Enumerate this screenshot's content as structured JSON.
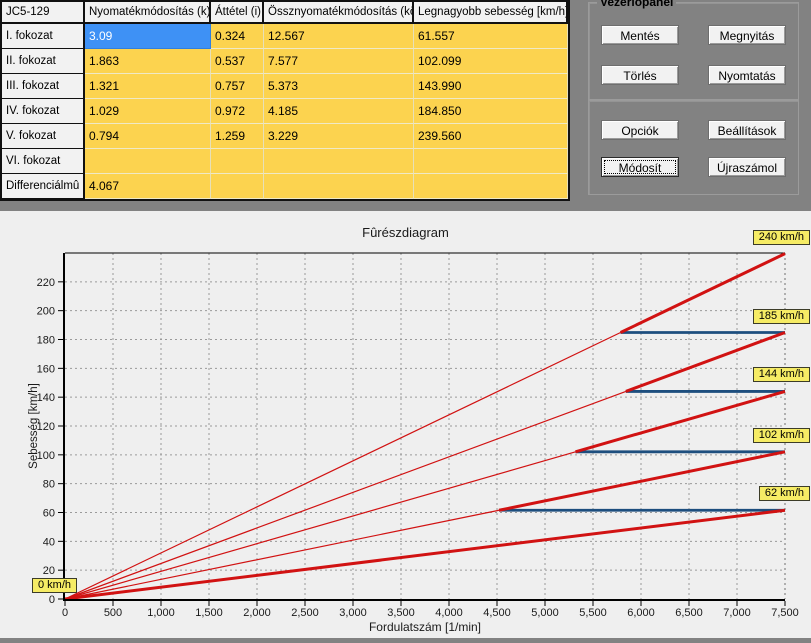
{
  "table": {
    "corner_header": "JC5-129",
    "col_headers": [
      "Nyomatékmódosítás (k)",
      "Áttétel (i)",
      "Össznyomatékmódosítás (kö)",
      "Legnagyobb sebesség [km/h]"
    ],
    "rows": [
      {
        "label": "I. fokozat",
        "values": [
          "3.09",
          "0.324",
          "12.567",
          "61.557"
        ],
        "selected_col": 0
      },
      {
        "label": "II. fokozat",
        "values": [
          "1.863",
          "0.537",
          "7.577",
          "102.099"
        ],
        "selected_col": -1
      },
      {
        "label": "III. fokozat",
        "values": [
          "1.321",
          "0.757",
          "5.373",
          "143.990"
        ],
        "selected_col": -1
      },
      {
        "label": "IV. fokozat",
        "values": [
          "1.029",
          "0.972",
          "4.185",
          "184.850"
        ],
        "selected_col": -1
      },
      {
        "label": "V. fokozat",
        "values": [
          "0.794",
          "1.259",
          "3.229",
          "239.560"
        ],
        "selected_col": -1
      },
      {
        "label": "VI. fokozat",
        "values": [
          "",
          "",
          "",
          ""
        ],
        "selected_col": -1
      },
      {
        "label": "Differenciálmû",
        "values": [
          "4.067",
          "",
          "",
          ""
        ],
        "selected_col": -1
      }
    ]
  },
  "control_panel": {
    "title": "Vezérlõpanel",
    "group1_buttons": [
      "Mentés",
      "Megnyitás",
      "Törlés",
      "Nyomtatás"
    ],
    "group2_buttons": [
      "Opciók",
      "Beállítások",
      "Módosít",
      "Újraszámol"
    ],
    "focused_button": "Módosít"
  },
  "chart_data": {
    "type": "line",
    "title": "Fûrészdiagram",
    "xlabel": "Fordulatszám [1/min]",
    "ylabel": "Sebesség [km/h]",
    "xlim": [
      0,
      7500
    ],
    "ylim": [
      0,
      240
    ],
    "x_tick_step": 500,
    "y_tick_step": 20,
    "x_ticks": [
      "0",
      "500",
      "1,000",
      "1,500",
      "2,000",
      "2,500",
      "3,000",
      "3,500",
      "4,000",
      "4,500",
      "5,000",
      "5,500",
      "6,000",
      "6,500",
      "7,000",
      "7,500"
    ],
    "y_ticks": [
      "0",
      "20",
      "40",
      "60",
      "80",
      "100",
      "120",
      "140",
      "160",
      "180",
      "200",
      "220"
    ],
    "grid": "dashed",
    "max_rpm": 7500,
    "gear_lines": [
      {
        "name": "I. fokozat",
        "vmax": 61.557,
        "bold_from_rpm": 0
      },
      {
        "name": "II. fokozat",
        "vmax": 102.099,
        "bold_from_rpm": 4521.8
      },
      {
        "name": "III. fokozat",
        "vmax": 143.99,
        "bold_from_rpm": 5318.0
      },
      {
        "name": "IV. fokozat",
        "vmax": 184.85,
        "bold_from_rpm": 5842.2
      },
      {
        "name": "V. fokozat",
        "vmax": 239.56,
        "bold_from_rpm": 5787.2
      }
    ],
    "shift_lines": [
      {
        "speed": 61.557,
        "from_rpm": 4521.8,
        "to_rpm": 7500
      },
      {
        "speed": 102.099,
        "from_rpm": 5318.0,
        "to_rpm": 7500
      },
      {
        "speed": 143.99,
        "from_rpm": 5842.2,
        "to_rpm": 7500
      },
      {
        "speed": 184.85,
        "from_rpm": 5787.2,
        "to_rpm": 7500
      }
    ],
    "speed_labels": [
      {
        "text": "240 km/h",
        "value": 239.56
      },
      {
        "text": "185 km/h",
        "value": 184.85
      },
      {
        "text": "144 km/h",
        "value": 143.99
      },
      {
        "text": "102 km/h",
        "value": 102.099
      },
      {
        "text": "62 km/h",
        "value": 61.557
      },
      {
        "text": "0 km/h",
        "value": 0
      }
    ],
    "colors": {
      "gear_line": "#d11212",
      "shift_line": "#1d4e7e",
      "label_bg": "#f6ec65",
      "table_highlight": "#3e91f5",
      "table_cell": "#fcd34f",
      "grid_line": "#9a9a9a"
    }
  }
}
